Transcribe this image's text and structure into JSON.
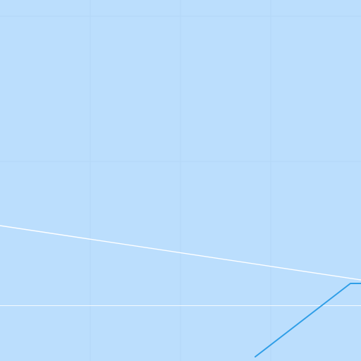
{
  "map": {
    "colors": {
      "water": "#bbdefd",
      "graticule": "#b3d7f6",
      "boundary_white": "#ffffff",
      "route_blue": "#2f9ee7"
    },
    "features": {
      "graticule": "graticule-grid",
      "boundary": "maritime-boundary-line",
      "route": "blue-route-line"
    }
  }
}
